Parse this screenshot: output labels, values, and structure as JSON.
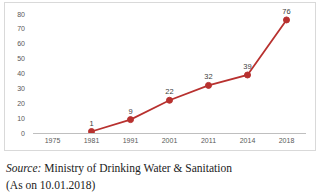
{
  "chart_data": {
    "type": "line",
    "categories": [
      "1975",
      "1981",
      "1991",
      "2001",
      "2011",
      "2014",
      "2018"
    ],
    "values": [
      null,
      1,
      9,
      22,
      32,
      39,
      76
    ],
    "color": "#b8312f",
    "marker": "circle",
    "ylim": [
      0,
      80
    ],
    "yticks": [
      0,
      10,
      20,
      30,
      40,
      50,
      60,
      70,
      80
    ],
    "grid": false,
    "data_labels": true,
    "annotations": [
      "Source:",
      "Ministry of Drinking Water & Sanitation",
      "(As on 10.01.2018)"
    ]
  }
}
